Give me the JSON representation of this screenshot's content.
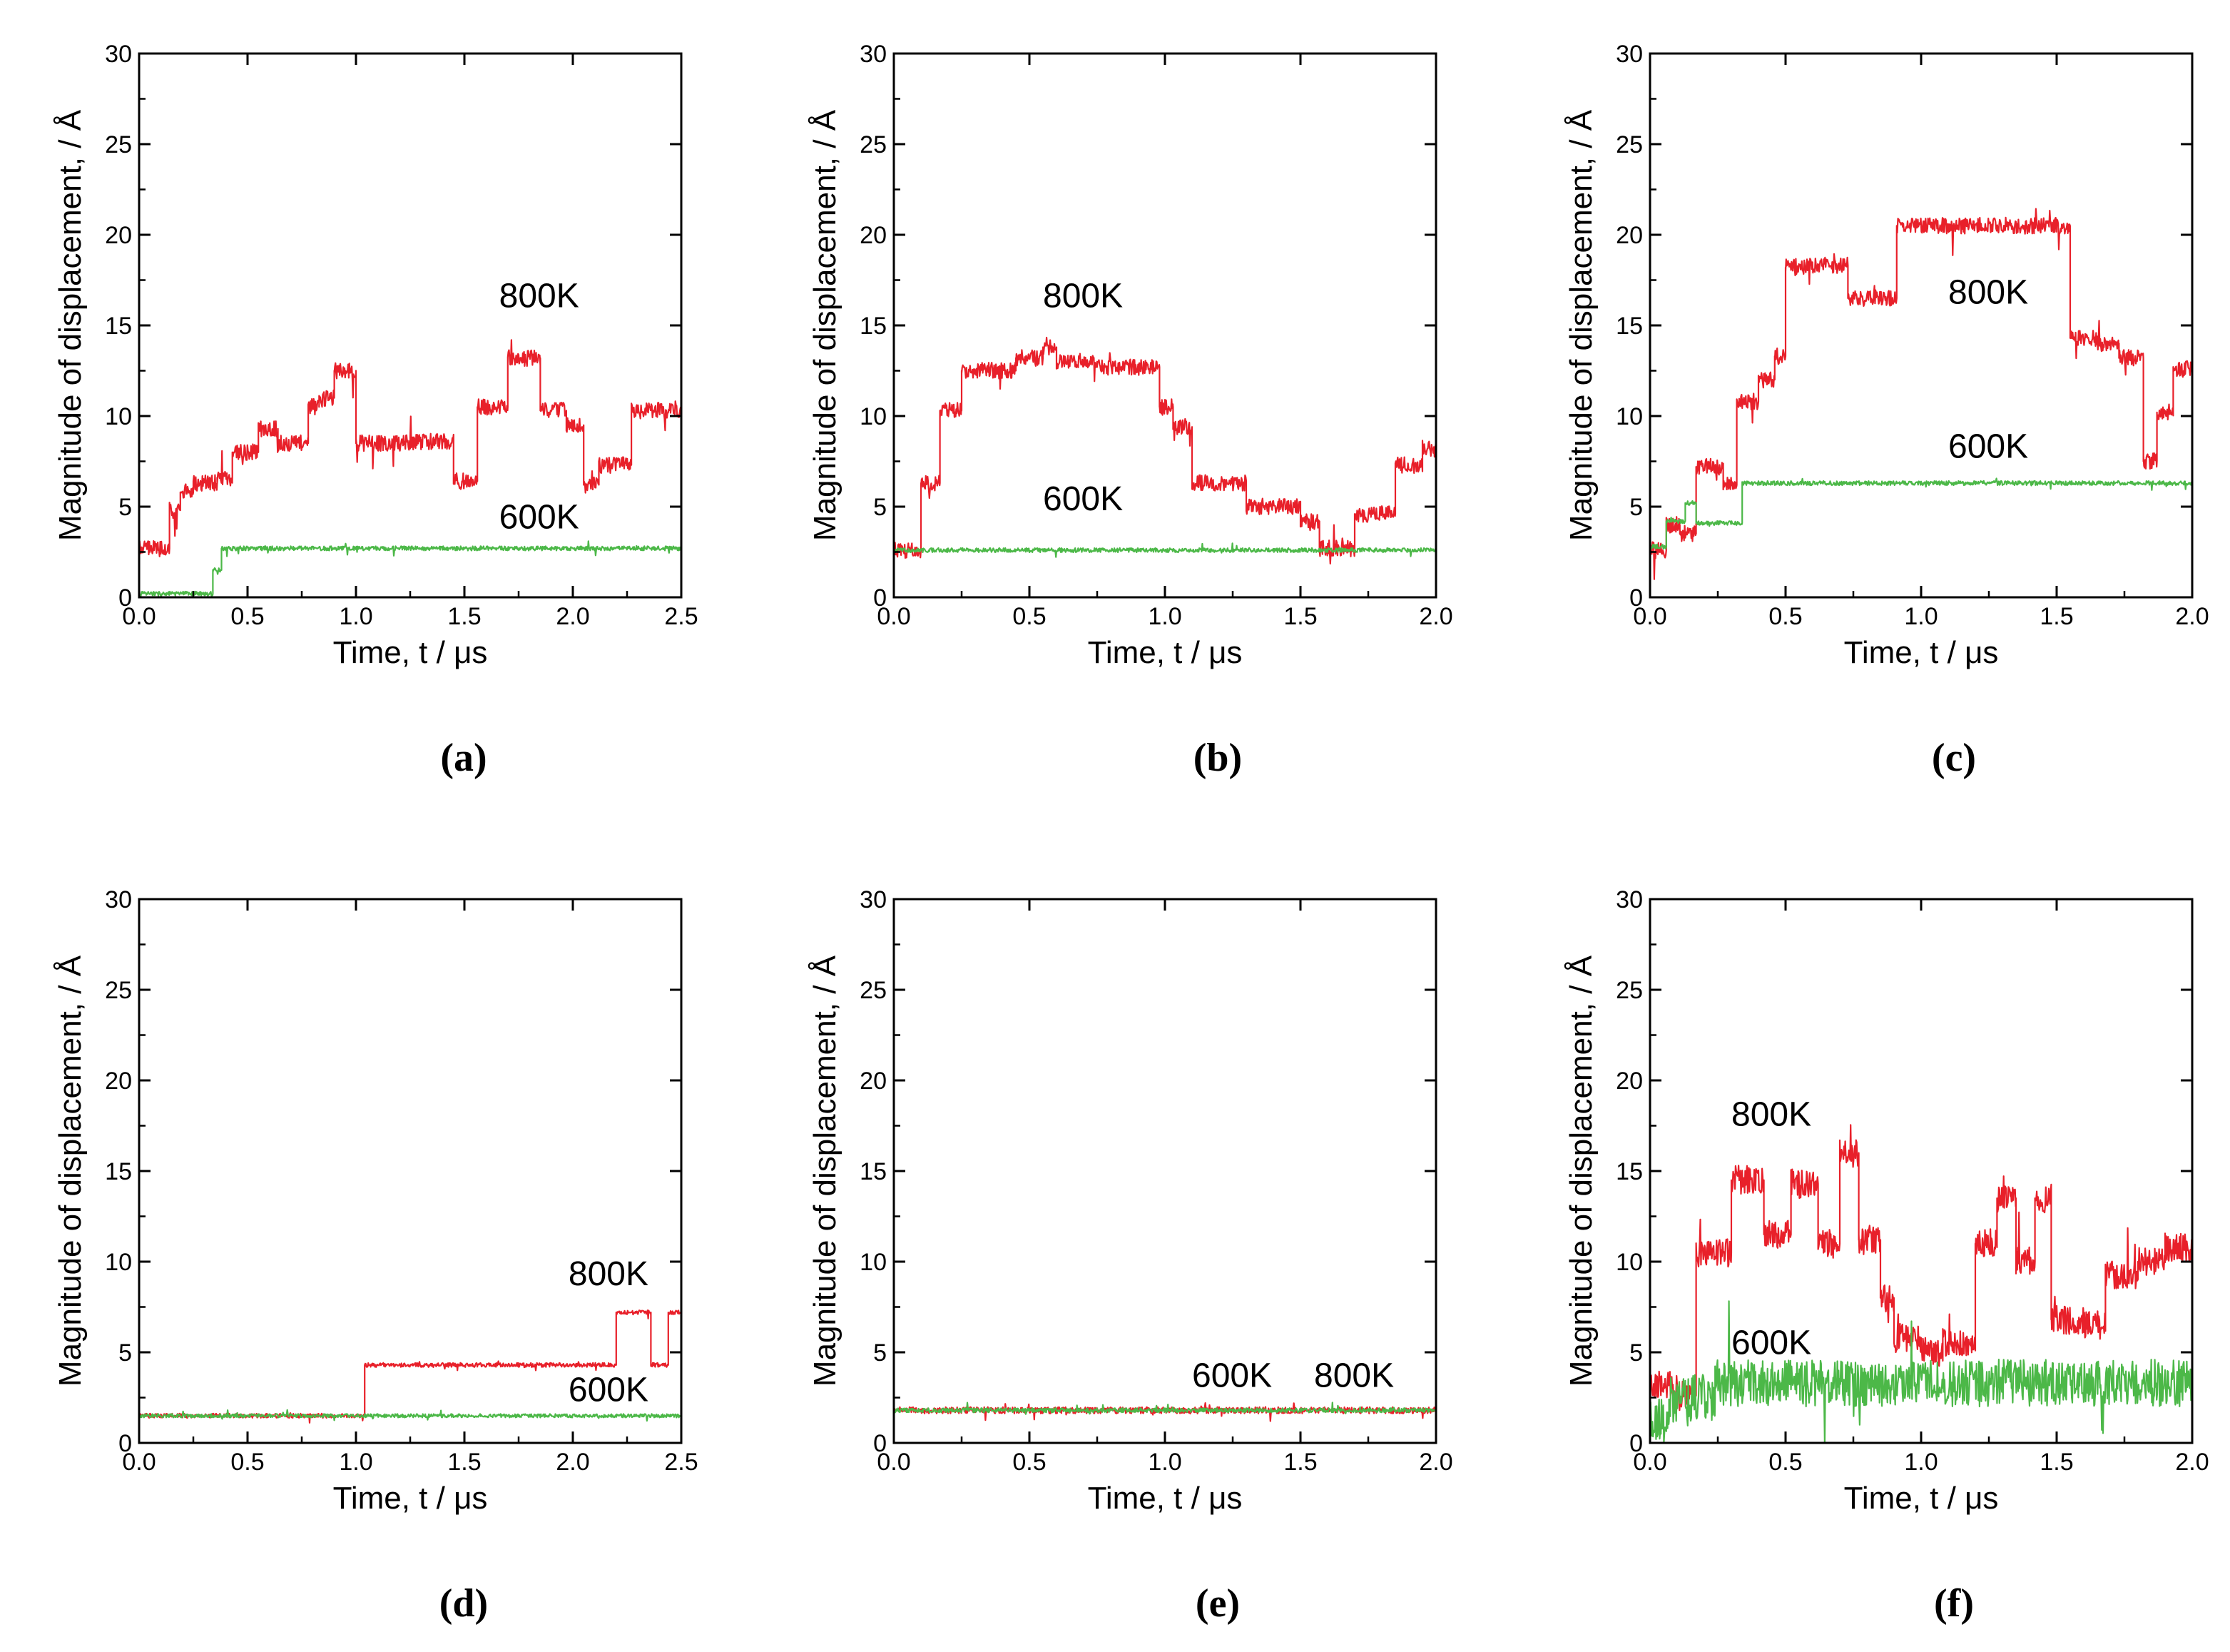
{
  "figure": {
    "colors": {
      "series_800K": "#e8202a",
      "series_600K": "#4cb848",
      "axis": "#000000"
    },
    "panels": [
      {
        "caption": "(a)",
        "chart_data": {
          "type": "line",
          "xlabel": "Time, t / μs",
          "ylabel": "Magnitude of displacement, / Å",
          "xlim": [
            0,
            2.5
          ],
          "ylim": [
            0,
            30
          ],
          "xticks": [
            "0.0",
            "0.5",
            "1.0",
            "1.5",
            "2.0",
            "2.5"
          ],
          "yticks": [
            "0",
            "5",
            "10",
            "15",
            "20",
            "25",
            "30"
          ],
          "annotations": [
            {
              "text": "800K",
              "x": 1.66,
              "y": 16
            },
            {
              "text": "600K",
              "x": 1.66,
              "y": 3.8
            }
          ],
          "series": [
            {
              "name": "800K",
              "noise": 0.45,
              "x": [
                0,
                0.14,
                0.14,
                0.19,
                0.19,
                0.25,
                0.25,
                0.36,
                0.36,
                0.43,
                0.43,
                0.55,
                0.55,
                0.64,
                0.64,
                0.78,
                0.78,
                0.83,
                0.83,
                0.9,
                0.9,
                1.0,
                1.0,
                1.25,
                1.25,
                1.45,
                1.45,
                1.56,
                1.56,
                1.7,
                1.7,
                1.85,
                1.85,
                1.97,
                1.97,
                2.05,
                2.05,
                2.12,
                2.12,
                2.27,
                2.27,
                2.5
              ],
              "y": [
                2.7,
                2.7,
                4.8,
                4.8,
                5.8,
                5.8,
                6.3,
                6.3,
                6.6,
                6.6,
                8,
                8,
                9.3,
                9.3,
                8.5,
                8.5,
                10.5,
                10.5,
                11,
                11,
                12.5,
                12.5,
                8.5,
                8.5,
                8.6,
                8.6,
                6.4,
                6.4,
                10.5,
                10.5,
                13.2,
                13.2,
                10.3,
                10.3,
                9.5,
                9.5,
                6.2,
                6.2,
                7.3,
                7.3,
                10.3,
                10.3
              ]
            },
            {
              "name": "600K",
              "noise": 0.12,
              "x": [
                0,
                0.34,
                0.34,
                0.38,
                0.38,
                2.5
              ],
              "y": [
                0.2,
                0.2,
                1.5,
                1.5,
                2.7,
                2.7
              ]
            }
          ]
        }
      },
      {
        "caption": "(b)",
        "chart_data": {
          "type": "line",
          "xlabel": "Time, t / μs",
          "ylabel": "Magnitude of displacement, / Å",
          "xlim": [
            0,
            2.0
          ],
          "ylim": [
            0,
            30
          ],
          "xticks": [
            "0.0",
            "0.5",
            "1.0",
            "1.5",
            "2.0"
          ],
          "yticks": [
            "0",
            "5",
            "10",
            "15",
            "20",
            "25",
            "30"
          ],
          "annotations": [
            {
              "text": "800K",
              "x": 0.55,
              "y": 16
            },
            {
              "text": "600K",
              "x": 0.55,
              "y": 4.8
            }
          ],
          "series": [
            {
              "name": "800K",
              "noise": 0.45,
              "x": [
                0,
                0.1,
                0.1,
                0.17,
                0.17,
                0.25,
                0.25,
                0.45,
                0.45,
                0.55,
                0.55,
                0.6,
                0.6,
                0.75,
                0.75,
                0.98,
                0.98,
                1.03,
                1.03,
                1.1,
                1.1,
                1.3,
                1.3,
                1.5,
                1.5,
                1.57,
                1.57,
                1.7,
                1.7,
                1.85,
                1.85,
                1.95,
                1.95,
                2.0
              ],
              "y": [
                2.6,
                2.6,
                6.3,
                6.3,
                10.3,
                10.3,
                12.5,
                12.5,
                13.2,
                13.2,
                13.8,
                13.8,
                13,
                13,
                12.7,
                12.7,
                10.5,
                10.5,
                9.4,
                9.4,
                6.3,
                6.3,
                5,
                5,
                4.2,
                4.2,
                2.7,
                2.7,
                4.6,
                4.6,
                7.3,
                7.3,
                8.2,
                8.2
              ]
            },
            {
              "name": "600K",
              "noise": 0.12,
              "x": [
                0,
                2.0
              ],
              "y": [
                2.6,
                2.6
              ]
            }
          ]
        }
      },
      {
        "caption": "(c)",
        "chart_data": {
          "type": "line",
          "xlabel": "Time, t / μs",
          "ylabel": "Magnitude of displacement, / Å",
          "xlim": [
            0,
            2.0
          ],
          "ylim": [
            0,
            30
          ],
          "xticks": [
            "0.0",
            "0.5",
            "1.0",
            "1.5",
            "2.0"
          ],
          "yticks": [
            "0",
            "5",
            "10",
            "15",
            "20",
            "25",
            "30"
          ],
          "annotations": [
            {
              "text": "800K",
              "x": 1.1,
              "y": 16.2
            },
            {
              "text": "600K",
              "x": 1.1,
              "y": 7.7
            }
          ],
          "series": [
            {
              "name": "800K",
              "noise": 0.45,
              "x": [
                0,
                0.06,
                0.06,
                0.11,
                0.11,
                0.17,
                0.17,
                0.27,
                0.27,
                0.32,
                0.32,
                0.4,
                0.4,
                0.46,
                0.46,
                0.5,
                0.5,
                0.57,
                0.57,
                0.73,
                0.73,
                0.77,
                0.77,
                0.91,
                0.91,
                1.55,
                1.55,
                1.65,
                1.65,
                1.73,
                1.73,
                1.82,
                1.82,
                1.87,
                1.87,
                1.93,
                1.93,
                2.0
              ],
              "y": [
                2.6,
                2.6,
                4,
                4,
                3.5,
                3.5,
                7.2,
                7.2,
                6.2,
                6.2,
                10.8,
                10.8,
                12,
                12,
                13.3,
                13.3,
                18.2,
                18.2,
                18.3,
                18.3,
                16.5,
                16.5,
                16.5,
                16.5,
                20.5,
                20.5,
                14.3,
                14.3,
                14,
                14,
                13.2,
                13.2,
                7.5,
                7.5,
                10.2,
                10.2,
                12.6,
                12.6
              ]
            },
            {
              "name": "600K",
              "noise": 0.12,
              "x": [
                0,
                0.06,
                0.06,
                0.13,
                0.13,
                0.17,
                0.17,
                0.34,
                0.34,
                2.0
              ],
              "y": [
                2.8,
                2.8,
                4.2,
                4.2,
                5.2,
                5.2,
                4.1,
                4.1,
                6.3,
                6.3
              ]
            }
          ]
        }
      },
      {
        "caption": "(d)",
        "chart_data": {
          "type": "line",
          "xlabel": "Time, t / μs",
          "ylabel": "Magnitude of displacement, / Å",
          "xlim": [
            0,
            2.5
          ],
          "ylim": [
            0,
            30
          ],
          "xticks": [
            "0.0",
            "0.5",
            "1.0",
            "1.5",
            "2.0",
            "2.5"
          ],
          "yticks": [
            "0",
            "5",
            "10",
            "15",
            "20",
            "25",
            "30"
          ],
          "annotations": [
            {
              "text": "800K",
              "x": 1.98,
              "y": 8.7
            },
            {
              "text": "600K",
              "x": 1.98,
              "y": 2.3
            }
          ],
          "series": [
            {
              "name": "800K",
              "noise": 0.12,
              "x": [
                0,
                1.04,
                1.04,
                2.2,
                2.2,
                2.36,
                2.36,
                2.44,
                2.44,
                2.5
              ],
              "y": [
                1.5,
                1.5,
                4.3,
                4.3,
                7.2,
                7.2,
                4.3,
                4.3,
                7.2,
                7.2
              ]
            },
            {
              "name": "600K",
              "noise": 0.1,
              "x": [
                0,
                2.5
              ],
              "y": [
                1.5,
                1.5
              ]
            }
          ]
        }
      },
      {
        "caption": "(e)",
        "chart_data": {
          "type": "line",
          "xlabel": "Time, t / μs",
          "ylabel": "Magnitude of displacement, / Å",
          "xlim": [
            0,
            2.0
          ],
          "ylim": [
            0,
            30
          ],
          "xticks": [
            "0.0",
            "0.5",
            "1.0",
            "1.5",
            "2.0"
          ],
          "yticks": [
            "0",
            "5",
            "10",
            "15",
            "20",
            "25",
            "30"
          ],
          "annotations": [
            {
              "text": "600K",
              "x": 1.1,
              "y": 3.1
            },
            {
              "text": "800K",
              "x": 1.55,
              "y": 3.1
            }
          ],
          "series": [
            {
              "name": "800K",
              "noise": 0.18,
              "x": [
                0,
                2.0
              ],
              "y": [
                1.8,
                1.8
              ]
            },
            {
              "name": "600K",
              "noise": 0.12,
              "x": [
                0,
                2.0
              ],
              "y": [
                1.8,
                1.8
              ]
            }
          ]
        }
      },
      {
        "caption": "(f)",
        "chart_data": {
          "type": "line",
          "xlabel": "Time, t / μs",
          "ylabel": "Magnitude of displacement, / Å",
          "xlim": [
            0,
            2.0
          ],
          "ylim": [
            0,
            30
          ],
          "xticks": [
            "0.0",
            "0.5",
            "1.0",
            "1.5",
            "2.0"
          ],
          "yticks": [
            "0",
            "5",
            "10",
            "15",
            "20",
            "25",
            "30"
          ],
          "annotations": [
            {
              "text": "800K",
              "x": 0.3,
              "y": 17.5
            },
            {
              "text": "600K",
              "x": 0.3,
              "y": 4.9
            }
          ],
          "series": [
            {
              "name": "800K",
              "noise": 0.8,
              "x": [
                0,
                0.1,
                0.1,
                0.17,
                0.17,
                0.3,
                0.3,
                0.42,
                0.42,
                0.52,
                0.52,
                0.62,
                0.62,
                0.7,
                0.7,
                0.77,
                0.77,
                0.85,
                0.85,
                0.9,
                0.9,
                1.0,
                1.0,
                1.08,
                1.08,
                1.2,
                1.2,
                1.28,
                1.28,
                1.35,
                1.35,
                1.42,
                1.42,
                1.48,
                1.48,
                1.6,
                1.6,
                1.68,
                1.68,
                1.8,
                1.8,
                1.9,
                1.9,
                2.0
              ],
              "y": [
                3.2,
                3.2,
                2.6,
                2.6,
                10.5,
                10.5,
                14.5,
                14.5,
                11.5,
                11.5,
                14.3,
                14.3,
                11,
                11,
                16,
                16,
                11.2,
                11.2,
                8,
                8,
                5.8,
                5.8,
                5,
                5,
                5.5,
                5.5,
                11,
                11,
                13.5,
                13.5,
                10,
                10,
                13.5,
                13.5,
                6.8,
                6.8,
                6.5,
                6.5,
                9.3,
                9.3,
                10,
                10,
                10.8,
                10.8
              ]
            },
            {
              "name": "600K",
              "noise": 1.3,
              "x": [
                0,
                0.07,
                0.07,
                0.13,
                0.13,
                0.24,
                0.24,
                0.28,
                0.28,
                2.0
              ],
              "y": [
                1.2,
                1.2,
                2.4,
                2.4,
                2.5,
                2.5,
                3.3,
                3.3,
                3.3,
                3.3
              ]
            }
          ]
        }
      }
    ]
  }
}
